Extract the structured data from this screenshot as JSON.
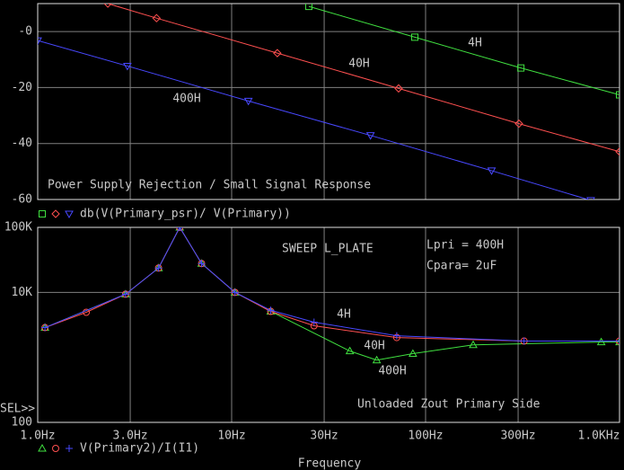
{
  "chart_data": [
    {
      "type": "line",
      "title": "Power Supply Rejection / Small Signal Response",
      "legend": "db(V(Primary_psr)/ V(Primary))",
      "xscale": "log",
      "xlim": [
        1,
        1000
      ],
      "xticks": [
        1,
        3,
        10,
        30,
        100,
        300,
        1000
      ],
      "ylim": [
        -60,
        10
      ],
      "yticks": [
        {
          "value": 0,
          "label": "-0"
        },
        -20,
        -40,
        -60
      ],
      "grid": true,
      "series": [
        {
          "name": "4H",
          "color": "#40e040",
          "marker": "square",
          "x": [
            25,
            88,
            310,
            1000
          ],
          "values": [
            9,
            -2,
            -13,
            -22.6
          ]
        },
        {
          "name": "40H",
          "color": "#ff5050",
          "marker": "diamond",
          "x": [
            2.3,
            4.1,
            17.2,
            72.6,
            303,
            1000
          ],
          "values": [
            10,
            4.8,
            -7.7,
            -20.3,
            -32.9,
            -42.9
          ]
        },
        {
          "name": "400H",
          "color": "#4848ff",
          "marker": "tri-down",
          "x": [
            1,
            2.9,
            12.2,
            52,
            219,
            711
          ],
          "values": [
            -3.2,
            -12.3,
            -24.8,
            -37.1,
            -49.7,
            -60.3
          ]
        }
      ]
    },
    {
      "type": "line",
      "legend": "V(Primary2)/I(I1)",
      "x_label": "Frequency",
      "annotations": [
        "SWEEP L_PLATE",
        "Lpri = 400H",
        "Cpara= 2uF",
        "Unloaded Zout Primary Side",
        "SEL>>"
      ],
      "xscale": "log",
      "yscale": "log",
      "xlim": [
        1,
        1000
      ],
      "xticks": [
        {
          "value": 1,
          "label": "1.0Hz"
        },
        {
          "value": 3,
          "label": "3.0Hz"
        },
        {
          "value": 10,
          "label": "10Hz"
        },
        {
          "value": 30,
          "label": "30Hz"
        },
        {
          "value": 100,
          "label": "100Hz"
        },
        {
          "value": 300,
          "label": "300Hz"
        },
        {
          "value": 1000,
          "label": "1.0KHz"
        }
      ],
      "ylim": [
        100,
        100000
      ],
      "yticks": [
        {
          "value": 100000,
          "label": "100K"
        },
        {
          "value": 10000,
          "label": "10K"
        },
        100
      ],
      "grid": true,
      "series": [
        {
          "name": "4H",
          "color": "#40e040",
          "marker": "tri-up",
          "x": [
            1.09,
            2.84,
            4.2,
            5.4,
            7.0,
            10.4,
            15.9,
            40.7,
            56,
            86,
            176,
            805,
            1000
          ],
          "values": [
            2870,
            9380,
            23700,
            100000,
            27800,
            10000,
            5100,
            1250,
            908,
            1140,
            1560,
            1720,
            1720
          ]
        },
        {
          "name": "40H",
          "color": "#ff5050",
          "marker": "circle",
          "x": [
            1.09,
            1.78,
            2.84,
            4.2,
            5.4,
            7.0,
            10.4,
            15.9,
            26.6,
            71,
            322,
            1000
          ],
          "values": [
            2870,
            4940,
            9380,
            23700,
            100000,
            27800,
            10000,
            5100,
            3060,
            2020,
            1780,
            1780
          ]
        },
        {
          "name": "400H",
          "color": "#4848ff",
          "marker": "plus",
          "x": [
            1.09,
            2.84,
            4.2,
            5.4,
            7.0,
            10.4,
            15.9,
            26.6,
            71,
            322,
            1000
          ],
          "values": [
            2870,
            9380,
            23700,
            100000,
            27800,
            10000,
            5300,
            3480,
            2150,
            1780,
            1780
          ]
        }
      ]
    }
  ]
}
